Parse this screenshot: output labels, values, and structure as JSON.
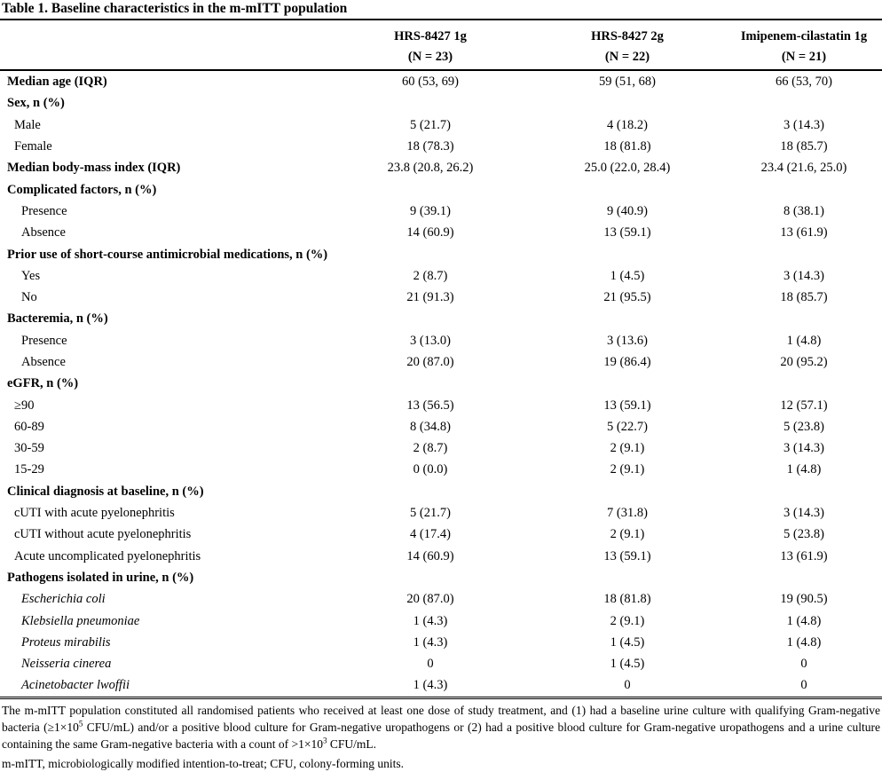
{
  "title": "Table 1. Baseline characteristics in the m-mITT population",
  "columns": [
    {
      "name": "HRS-8427 1g",
      "n": "(N = 23)"
    },
    {
      "name": "HRS-8427 2g",
      "n": "(N = 22)"
    },
    {
      "name": "Imipenem-cilastatin 1g",
      "n": "(N = 21)"
    }
  ],
  "rows": [
    {
      "label": "Median age (IQR)",
      "style": "bold",
      "values": [
        "60 (53, 69)",
        "59 (51, 68)",
        "66 (53, 70)"
      ]
    },
    {
      "label": "Sex, n (%)",
      "style": "bold",
      "values": [
        "",
        "",
        ""
      ]
    },
    {
      "label": "Male",
      "indent": 1,
      "values": [
        "5 (21.7)",
        "4 (18.2)",
        "3 (14.3)"
      ]
    },
    {
      "label": "Female",
      "indent": 1,
      "values": [
        "18 (78.3)",
        "18 (81.8)",
        "18 (85.7)"
      ]
    },
    {
      "label": "Median body-mass index (IQR)",
      "style": "bold",
      "values": [
        "23.8 (20.8, 26.2)",
        "25.0 (22.0, 28.4)",
        "23.4 (21.6, 25.0)"
      ]
    },
    {
      "label": "Complicated factors, n (%)",
      "style": "bold",
      "values": [
        "",
        "",
        ""
      ]
    },
    {
      "label": "Presence",
      "indent": 2,
      "values": [
        "9 (39.1)",
        "9 (40.9)",
        "8 (38.1)"
      ]
    },
    {
      "label": "Absence",
      "indent": 2,
      "values": [
        "14 (60.9)",
        "13 (59.1)",
        "13 (61.9)"
      ]
    },
    {
      "label": "Prior use of short-course antimicrobial medications, n (%)",
      "style": "bold",
      "values": [
        "",
        "",
        ""
      ]
    },
    {
      "label": "Yes",
      "indent": 2,
      "values": [
        "2 (8.7)",
        "1 (4.5)",
        "3 (14.3)"
      ]
    },
    {
      "label": "No",
      "indent": 2,
      "values": [
        "21 (91.3)",
        "21 (95.5)",
        "18 (85.7)"
      ]
    },
    {
      "label": "Bacteremia, n (%)",
      "style": "bold",
      "values": [
        "",
        "",
        ""
      ]
    },
    {
      "label": "Presence",
      "indent": 2,
      "values": [
        "3 (13.0)",
        "3 (13.6)",
        "1 (4.8)"
      ]
    },
    {
      "label": "Absence",
      "indent": 2,
      "values": [
        "20 (87.0)",
        "19 (86.4)",
        "20 (95.2)"
      ]
    },
    {
      "label": "eGFR, n (%)",
      "style": "bold",
      "values": [
        "",
        "",
        ""
      ]
    },
    {
      "label": "≥90",
      "indent": 1,
      "values": [
        "13 (56.5)",
        "13 (59.1)",
        "12 (57.1)"
      ]
    },
    {
      "label": "60-89",
      "indent": 1,
      "values": [
        "8 (34.8)",
        "5 (22.7)",
        "5 (23.8)"
      ]
    },
    {
      "label": "30-59",
      "indent": 1,
      "values": [
        "2 (8.7)",
        "2 (9.1)",
        "3 (14.3)"
      ]
    },
    {
      "label": "15-29",
      "indent": 1,
      "values": [
        "0 (0.0)",
        "2 (9.1)",
        "1 (4.8)"
      ]
    },
    {
      "label": "Clinical diagnosis at baseline, n (%)",
      "style": "bold",
      "values": [
        "",
        "",
        ""
      ]
    },
    {
      "label": "cUTI with acute pyelonephritis",
      "indent": 1,
      "values": [
        "5 (21.7)",
        "7 (31.8)",
        "3 (14.3)"
      ]
    },
    {
      "label": "cUTI without acute pyelonephritis",
      "indent": 1,
      "values": [
        "4 (17.4)",
        "2 (9.1)",
        "5 (23.8)"
      ]
    },
    {
      "label": "Acute uncomplicated pyelonephritis",
      "indent": 1,
      "values": [
        "14 (60.9)",
        "13 (59.1)",
        "13 (61.9)"
      ]
    },
    {
      "label": "Pathogens isolated in urine, n (%)",
      "style": "bold",
      "values": [
        "",
        "",
        ""
      ]
    },
    {
      "label": "Escherichia coli",
      "indent": 2,
      "style": "italic",
      "values": [
        "20 (87.0)",
        "18 (81.8)",
        "19 (90.5)"
      ]
    },
    {
      "label": "Klebsiella pneumoniae",
      "indent": 2,
      "style": "italic",
      "values": [
        "1 (4.3)",
        "2 (9.1)",
        "1 (4.8)"
      ]
    },
    {
      "label": "Proteus mirabilis",
      "indent": 2,
      "style": "italic",
      "values": [
        "1 (4.3)",
        "1 (4.5)",
        "1 (4.8)"
      ]
    },
    {
      "label": "Neisseria cinerea",
      "indent": 2,
      "style": "italic",
      "values": [
        "0",
        "1 (4.5)",
        "0"
      ]
    },
    {
      "label": "Acinetobacter lwoffii",
      "indent": 2,
      "style": "italic",
      "values": [
        "1 (4.3)",
        "0",
        "0"
      ]
    }
  ],
  "footnote1": {
    "a": "The m-mITT population constituted all randomised patients who received at least one dose of study treatment, and (1) had a baseline urine culture with qualifying Gram-negative bacteria (≥1×10",
    "sup1": "5",
    "b": " CFU/mL) and/or a positive blood culture for Gram-negative uropathogens or (2) had a positive blood culture for Gram-negative uropathogens and a urine culture containing the same Gram-negative bacteria with a count of >1×10",
    "sup2": "3",
    "c": " CFU/mL."
  },
  "footnote2": "m-mITT, microbiologically modified intention-to-treat; CFU, colony-forming units."
}
